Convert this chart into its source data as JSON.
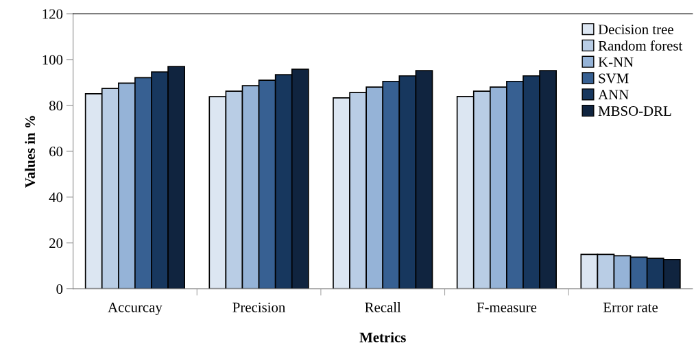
{
  "chart_data": {
    "type": "bar",
    "xlabel": "Metrics",
    "ylabel": "Values in %",
    "categories": [
      "Accurcay",
      "Precision",
      "Recall",
      "F-measure",
      "Error rate"
    ],
    "series": [
      {
        "name": "Decision tree",
        "color": "#dce6f2",
        "values": [
          85.1,
          83.8,
          83.3,
          83.9,
          15.0
        ]
      },
      {
        "name": "Random forest",
        "color": "#b9cde5",
        "values": [
          87.4,
          86.2,
          85.6,
          86.2,
          15.0
        ]
      },
      {
        "name": "K-NN",
        "color": "#95b3d7",
        "values": [
          89.7,
          88.6,
          88.0,
          88.0,
          14.4
        ]
      },
      {
        "name": "SVM",
        "color": "#376092",
        "values": [
          92.1,
          91.0,
          90.5,
          90.5,
          13.8
        ]
      },
      {
        "name": "ANN",
        "color": "#17375e",
        "values": [
          94.6,
          93.4,
          92.9,
          92.9,
          13.3
        ]
      },
      {
        "name": "MBSO-DRL",
        "color": "#10243f",
        "values": [
          97.0,
          95.8,
          95.2,
          95.2,
          12.8
        ]
      }
    ],
    "ylim": [
      0,
      120
    ],
    "yticks": [
      0,
      20,
      40,
      60,
      80,
      100,
      120
    ],
    "grid": false,
    "legend": "top right"
  }
}
